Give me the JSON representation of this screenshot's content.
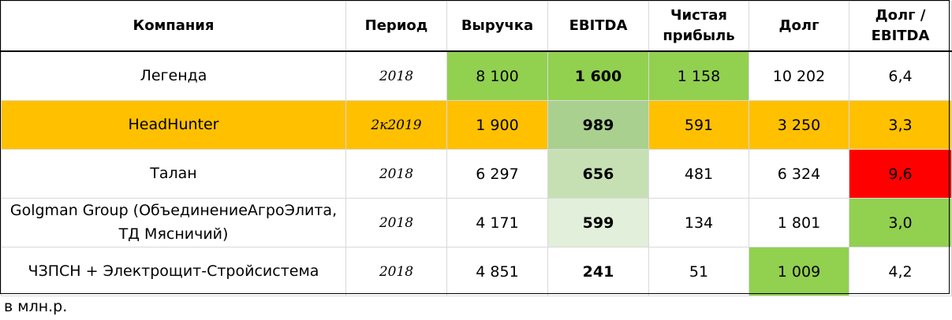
{
  "headers": {
    "company": "Компания",
    "period": "Период",
    "revenue": "Выручка",
    "ebitda": "EBITDA",
    "net_profit_line1": "Чистая",
    "net_profit_line2": "прибыль",
    "debt": "Долг",
    "debt_ebitda_line1": "Долг /",
    "debt_ebitda_line2": "EBITDA"
  },
  "colors": {
    "green": "#92d050",
    "orange": "#ffc000",
    "red": "#ff0000",
    "ebitda_scale": [
      "#ffffff",
      "#a9d08e",
      "#c6e0b4",
      "#e2efda",
      "#ffffff"
    ]
  },
  "rows": [
    {
      "company": "Легенда",
      "company_line2": "",
      "period": "2018",
      "revenue": "8 100",
      "ebitda": "1 600",
      "net_profit": "1 158",
      "debt": "10 202",
      "debt_ebitda": "6,4"
    },
    {
      "company": "HeadHunter",
      "company_line2": "",
      "period": "2к2019",
      "revenue": "1 900",
      "ebitda": "989",
      "net_profit": "591",
      "debt": "3 250",
      "debt_ebitda": "3,3"
    },
    {
      "company": "Талан",
      "company_line2": "",
      "period": "2018",
      "revenue": "6 297",
      "ebitda": "656",
      "net_profit": "481",
      "debt": "6 324",
      "debt_ebitda": "9,6"
    },
    {
      "company": "Golgman Group (ОбъединениеАгроЭлита,",
      "company_line2": "ТД Мясничий)",
      "period": "2018",
      "revenue": "4 171",
      "ebitda": "599",
      "net_profit": "134",
      "debt": "1 801",
      "debt_ebitda": "3,0"
    },
    {
      "company": "ЧЗПСН + Электрощит-Стройсистема",
      "company_line2": "",
      "period": "2018",
      "revenue": "4 851",
      "ebitda": "241",
      "net_profit": "51",
      "debt": "1 009",
      "debt_ebitda": "4,2"
    }
  ],
  "footnote": "в млн.р."
}
